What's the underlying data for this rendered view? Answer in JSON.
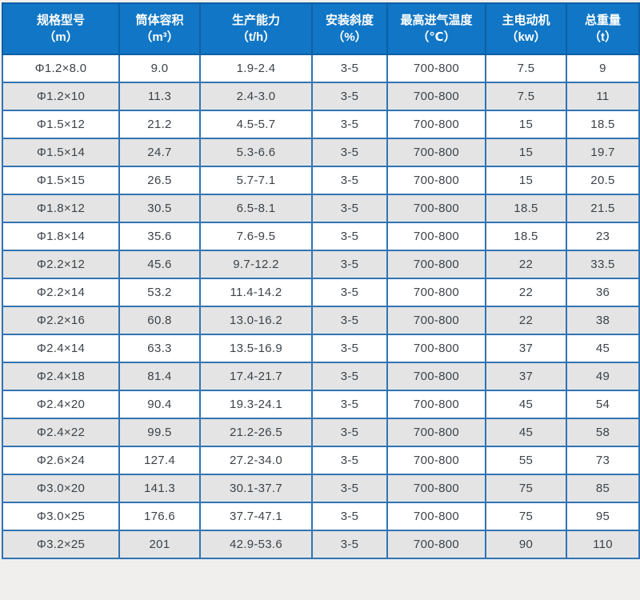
{
  "chart_data": {
    "type": "table",
    "title": "",
    "columns": [
      {
        "title": "规格型号",
        "unit": "（m）"
      },
      {
        "title": "筒体容积",
        "unit": "（m³）"
      },
      {
        "title": "生产能力",
        "unit": "（t/h）"
      },
      {
        "title": "安装斜度",
        "unit": "（%）"
      },
      {
        "title": "最高进气温度",
        "unit": "（℃）"
      },
      {
        "title": "主电动机",
        "unit": "（kw）"
      },
      {
        "title": "总重量",
        "unit": "（t）"
      }
    ],
    "rows": [
      [
        "Φ1.2×8.0",
        "9.0",
        "1.9-2.4",
        "3-5",
        "700-800",
        "7.5",
        "9"
      ],
      [
        "Φ1.2×10",
        "11.3",
        "2.4-3.0",
        "3-5",
        "700-800",
        "7.5",
        "11"
      ],
      [
        "Φ1.5×12",
        "21.2",
        "4.5-5.7",
        "3-5",
        "700-800",
        "15",
        "18.5"
      ],
      [
        "Φ1.5×14",
        "24.7",
        "5.3-6.6",
        "3-5",
        "700-800",
        "15",
        "19.7"
      ],
      [
        "Φ1.5×15",
        "26.5",
        "5.7-7.1",
        "3-5",
        "700-800",
        "15",
        "20.5"
      ],
      [
        "Φ1.8×12",
        "30.5",
        "6.5-8.1",
        "3-5",
        "700-800",
        "18.5",
        "21.5"
      ],
      [
        "Φ1.8×14",
        "35.6",
        "7.6-9.5",
        "3-5",
        "700-800",
        "18.5",
        "23"
      ],
      [
        "Φ2.2×12",
        "45.6",
        "9.7-12.2",
        "3-5",
        "700-800",
        "22",
        "33.5"
      ],
      [
        "Φ2.2×14",
        "53.2",
        "11.4-14.2",
        "3-5",
        "700-800",
        "22",
        "36"
      ],
      [
        "Φ2.2×16",
        "60.8",
        "13.0-16.2",
        "3-5",
        "700-800",
        "22",
        "38"
      ],
      [
        "Φ2.4×14",
        "63.3",
        "13.5-16.9",
        "3-5",
        "700-800",
        "37",
        "45"
      ],
      [
        "Φ2.4×18",
        "81.4",
        "17.4-21.7",
        "3-5",
        "700-800",
        "37",
        "49"
      ],
      [
        "Φ2.4×20",
        "90.4",
        "19.3-24.1",
        "3-5",
        "700-800",
        "45",
        "54"
      ],
      [
        "Φ2.4×22",
        "99.5",
        "21.2-26.5",
        "3-5",
        "700-800",
        "45",
        "58"
      ],
      [
        "Φ2.6×24",
        "127.4",
        "27.2-34.0",
        "3-5",
        "700-800",
        "55",
        "73"
      ],
      [
        "Φ3.0×20",
        "141.3",
        "30.1-37.7",
        "3-5",
        "700-800",
        "75",
        "85"
      ],
      [
        "Φ3.0×25",
        "176.6",
        "37.7-47.1",
        "3-5",
        "700-800",
        "75",
        "95"
      ],
      [
        "Φ3.2×25",
        "201",
        "42.9-53.6",
        "3-5",
        "700-800",
        "90",
        "110"
      ]
    ],
    "layout_hints": {
      "header_rows": 1,
      "striped": "even-rows-gray",
      "grid": true
    },
    "colors": {
      "header_bg": "#1176c5",
      "header_text": "#ffffff",
      "header_border": "#0d5fa4",
      "body_border": "#2f74b2",
      "row_bg": "#ffffff",
      "row_alt_bg": "#e4e4e4",
      "cell_text": "#3d4349",
      "page_bg": "#f0efee"
    }
  }
}
